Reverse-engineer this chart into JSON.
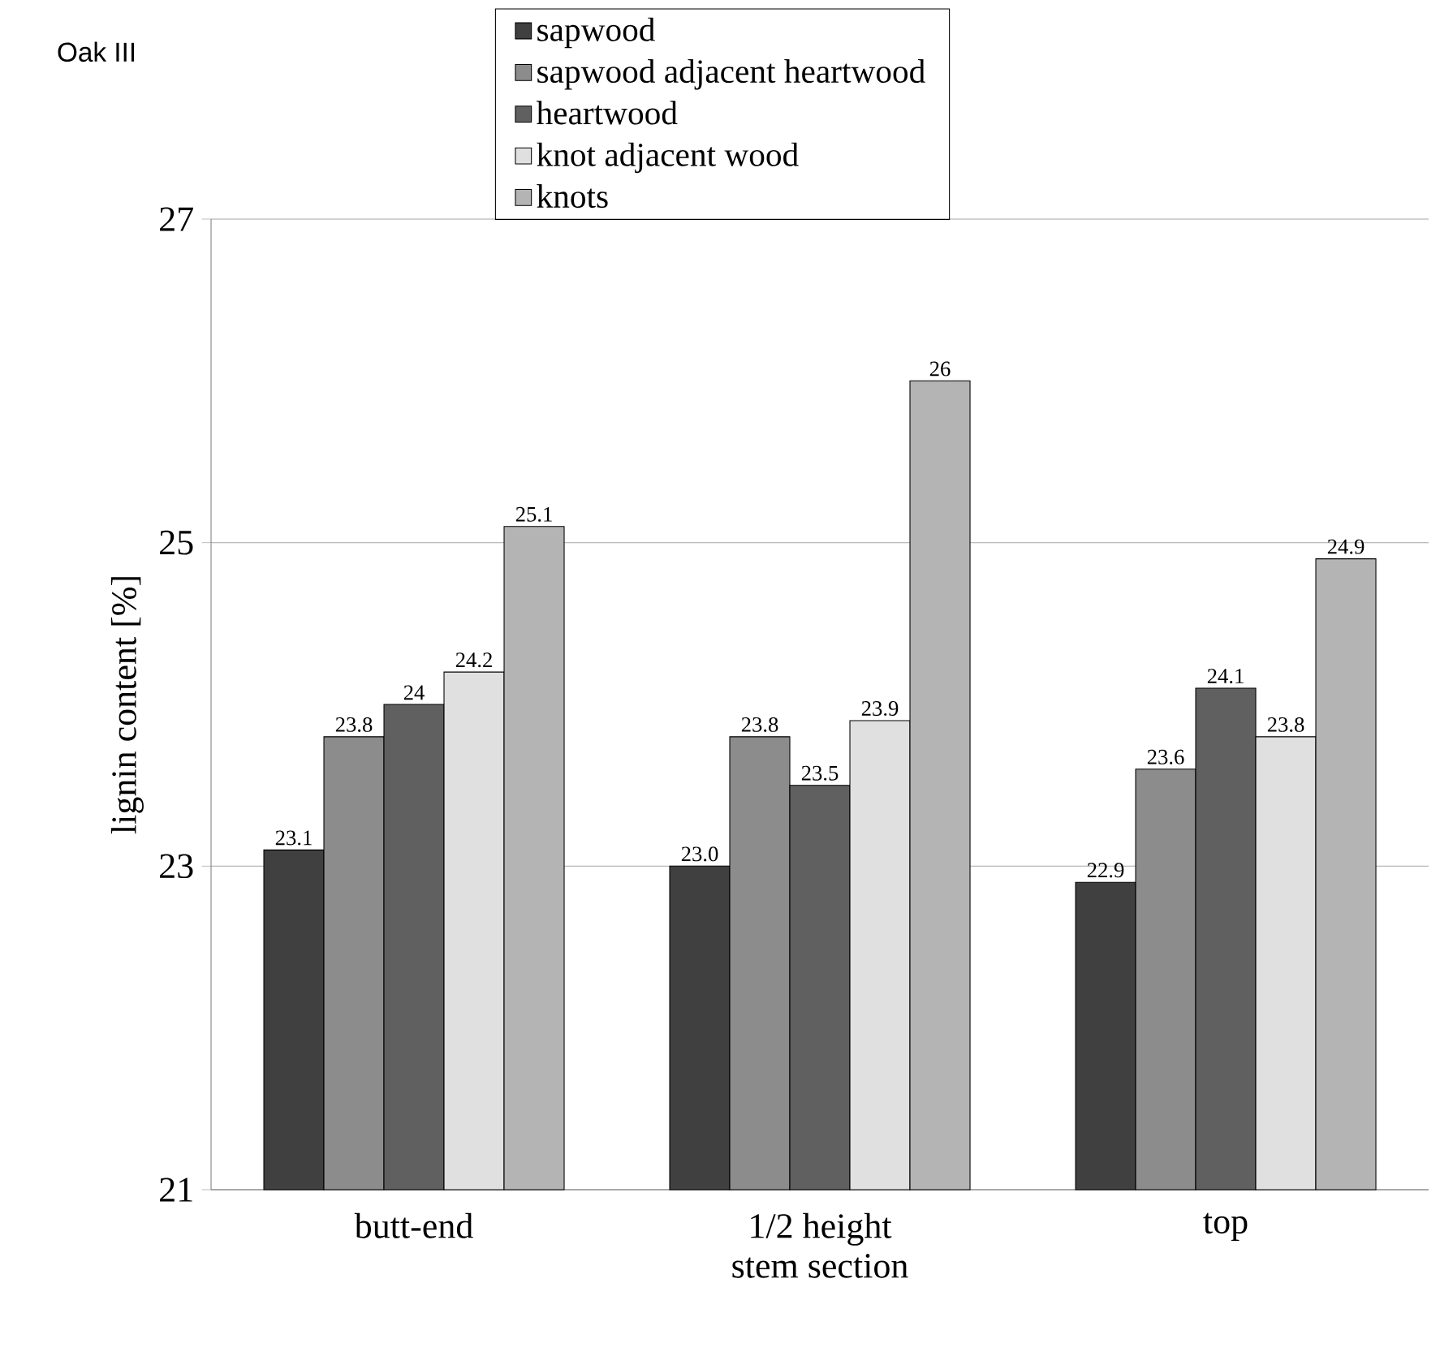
{
  "chart_data": {
    "type": "bar",
    "title": "Oak III",
    "xlabel": "stem section",
    "ylabel": "lignin content [%]",
    "categories": [
      "butt-end",
      "1/2 height",
      "top"
    ],
    "series": [
      {
        "name": "sapwood",
        "color": "#404040",
        "values": [
          23.1,
          23.0,
          22.9
        ],
        "value_labels": [
          "23.1",
          "23.0",
          "22.9"
        ]
      },
      {
        "name": "sapwood adjacent heartwood",
        "color": "#8c8c8c",
        "values": [
          23.8,
          23.8,
          23.6
        ],
        "value_labels": [
          "23.8",
          "23.8",
          "23.6"
        ]
      },
      {
        "name": "heartwood",
        "color": "#606060",
        "values": [
          24,
          23.5,
          24.1
        ],
        "value_labels": [
          "24",
          "23.5",
          "24.1"
        ]
      },
      {
        "name": "knot adjacent wood",
        "color": "#e0e0e0",
        "values": [
          24.2,
          23.9,
          23.8
        ],
        "value_labels": [
          "24.2",
          "23.9",
          "23.8"
        ]
      },
      {
        "name": "knots",
        "color": "#b4b4b4",
        "values": [
          25.1,
          26,
          24.9
        ],
        "value_labels": [
          "25.1",
          "26",
          "24.9"
        ]
      }
    ],
    "ylim": [
      21,
      27
    ],
    "yticks": [
      21,
      23,
      25,
      27
    ],
    "grid": "y",
    "legend": "top"
  }
}
